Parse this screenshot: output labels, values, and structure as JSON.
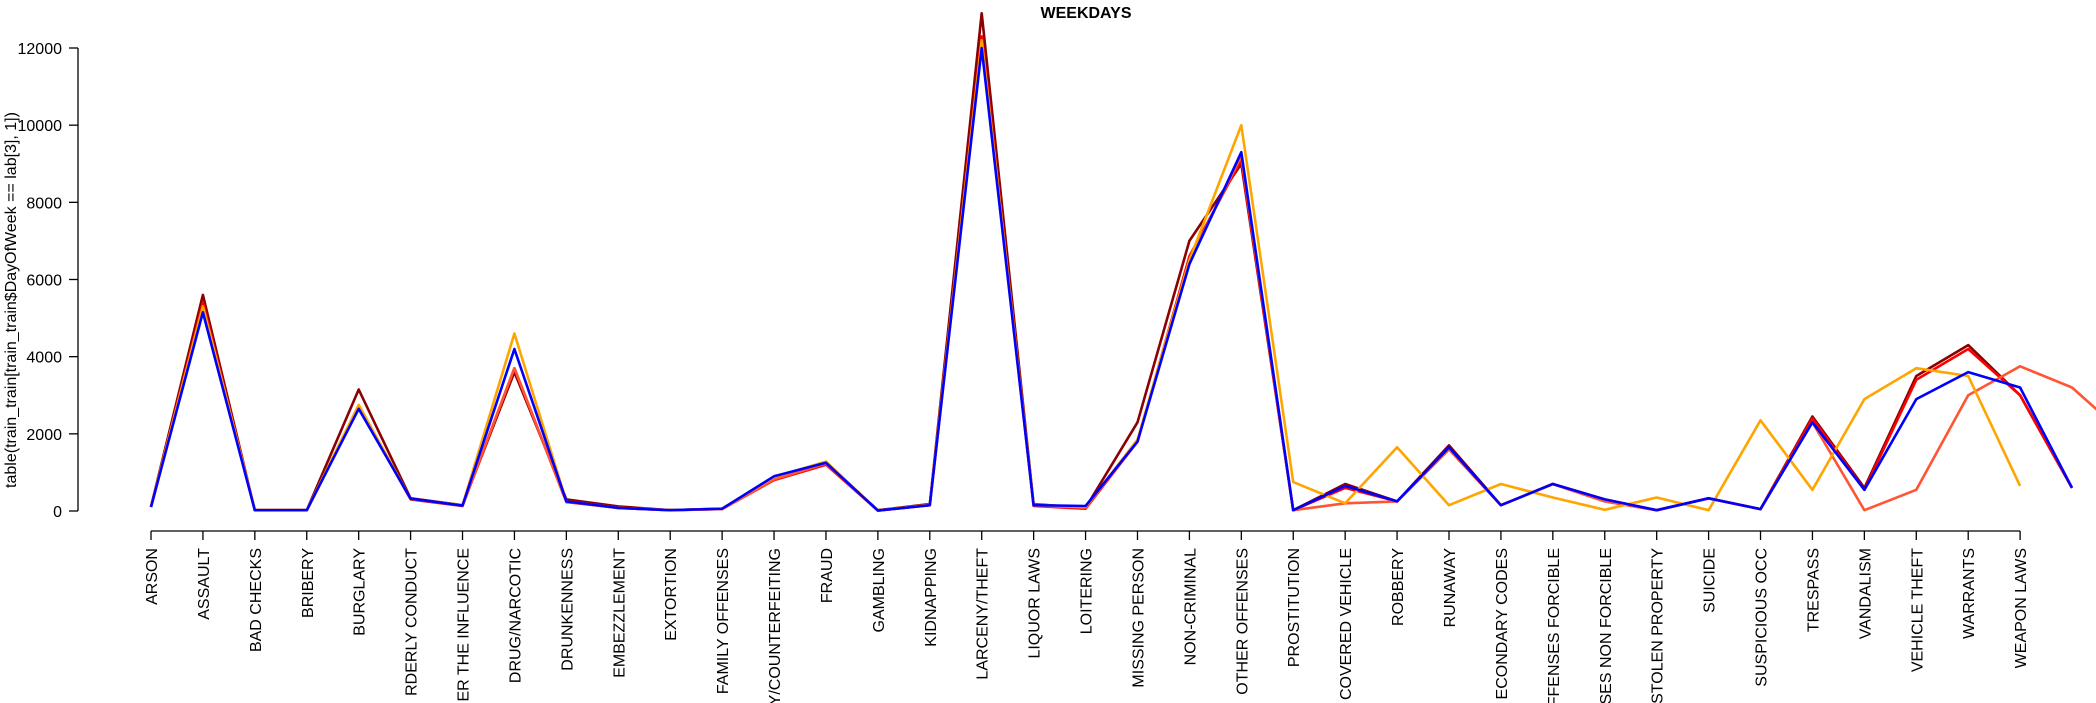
{
  "chart_data": {
    "type": "line",
    "title": "WEEKDAYS",
    "y_label": "table(train_train[train_train$DayOfWeek == lab[3], 1])",
    "categories": [
      "ARSON",
      "ASSAULT",
      "BAD CHECKS",
      "BRIBERY",
      "BURGLARY",
      "RDERLY CONDUCT",
      "ER THE INFLUENCE",
      "DRUG/NARCOTIC",
      "DRUNKENNESS",
      "EMBEZZLEMENT",
      "EXTORTION",
      "FAMILY OFFENSES",
      "Y/COUNTERFEITING",
      "FRAUD",
      "GAMBLING",
      "KIDNAPPING",
      "LARCENY/THEFT",
      "LIQUOR LAWS",
      "LOITERING",
      "MISSING PERSON",
      "NON-CRIMINAL",
      "OTHER OFFENSES",
      "PROSTITUTION",
      "COVERED VEHICLE",
      "ROBBERY",
      "RUNAWAY",
      "ECONDARY CODES",
      "FFENSES FORCIBLE",
      "SES NON FORCIBLE",
      "STOLEN PROPERTY",
      "SUICIDE",
      "SUSPICIOUS OCC",
      "TRESPASS",
      "VANDALISM",
      "VEHICLE THEFT",
      "WARRANTS",
      "WEAPON LAWS",
      null,
      null
    ],
    "series": [
      {
        "color": "#8b0000",
        "values": [
          120,
          5600,
          20,
          20,
          3150,
          330,
          150,
          3600,
          300,
          120,
          20,
          60,
          850,
          1250,
          20,
          180,
          12900,
          180,
          80,
          2300,
          7000,
          9000,
          20,
          700,
          250,
          1700,
          150,
          700,
          300,
          20,
          330,
          50,
          2450,
          600,
          3500,
          4300,
          3000,
          600,
          null
        ]
      },
      {
        "color": "#ff0000",
        "values": [
          100,
          5400,
          20,
          20,
          2700,
          300,
          130,
          3700,
          230,
          80,
          20,
          50,
          800,
          1200,
          10,
          150,
          12300,
          130,
          60,
          1800,
          6600,
          9100,
          20,
          600,
          250,
          1600,
          150,
          700,
          250,
          20,
          330,
          50,
          2400,
          550,
          3400,
          4200,
          3000,
          600,
          null
        ]
      },
      {
        "color": "#ff5533",
        "values": [
          110,
          5300,
          30,
          20,
          2700,
          310,
          140,
          3700,
          240,
          80,
          20,
          50,
          820,
          1230,
          10,
          150,
          12100,
          140,
          90,
          1800,
          6500,
          9200,
          20,
          200,
          250,
          1600,
          150,
          700,
          250,
          20,
          330,
          50,
          2300,
          20,
          550,
          3000,
          3750,
          3200,
          2000
        ]
      },
      {
        "color": "#ffa500",
        "values": [
          110,
          5300,
          30,
          20,
          2750,
          310,
          150,
          4600,
          250,
          80,
          20,
          60,
          880,
          1280,
          10,
          160,
          12200,
          160,
          100,
          1850,
          6500,
          10000,
          750,
          200,
          1650,
          150,
          700,
          350,
          30,
          350,
          20,
          2350,
          550,
          2900,
          3700,
          3500,
          650,
          null,
          null
        ]
      },
      {
        "color": "#0000ff",
        "values": [
          100,
          5150,
          20,
          20,
          2650,
          320,
          140,
          4200,
          250,
          80,
          20,
          60,
          900,
          1250,
          10,
          150,
          12000,
          150,
          130,
          1800,
          6400,
          9300,
          20,
          650,
          250,
          1650,
          150,
          700,
          300,
          20,
          330,
          50,
          2300,
          550,
          2900,
          3600,
          3200,
          600,
          null
        ]
      }
    ],
    "ylim": [
      0,
      12000
    ],
    "yticks": [
      0,
      2000,
      4000,
      6000,
      8000,
      10000,
      12000
    ]
  }
}
